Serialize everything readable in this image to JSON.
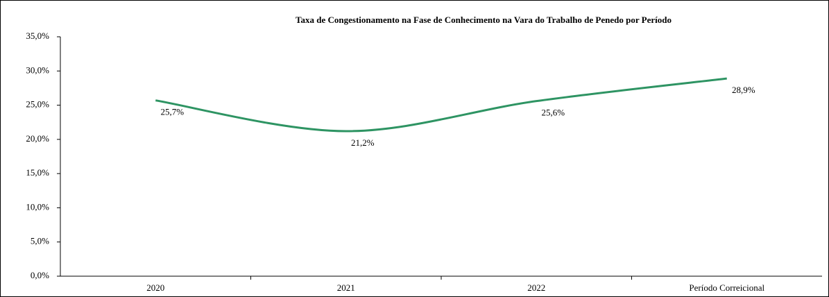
{
  "chart_data": {
    "type": "line",
    "title": "Taxa de Congestionamento na Fase de Conhecimento na Vara do Trabalho de Penedo por Período",
    "categories": [
      "2020",
      "2021",
      "2022",
      "Período Correicional"
    ],
    "series": [
      {
        "name": "Taxa de Congestionamento",
        "color": "#2e9463",
        "values": [
          25.7,
          21.2,
          25.6,
          28.9
        ],
        "value_labels": [
          "25,7%",
          "21,2%",
          "25,6%",
          "28,9%"
        ]
      }
    ],
    "ylim": [
      0,
      35
    ],
    "yticks": [
      {
        "value": 0,
        "label": "0,0%"
      },
      {
        "value": 5,
        "label": "5,0%"
      },
      {
        "value": 10,
        "label": "10,0%"
      },
      {
        "value": 15,
        "label": "15,0%"
      },
      {
        "value": 20,
        "label": "20,0%"
      },
      {
        "value": 25,
        "label": "25,0%"
      },
      {
        "value": 30,
        "label": "30,0%"
      },
      {
        "value": 35,
        "label": "35,0%"
      }
    ],
    "grid": false,
    "smooth": true
  }
}
